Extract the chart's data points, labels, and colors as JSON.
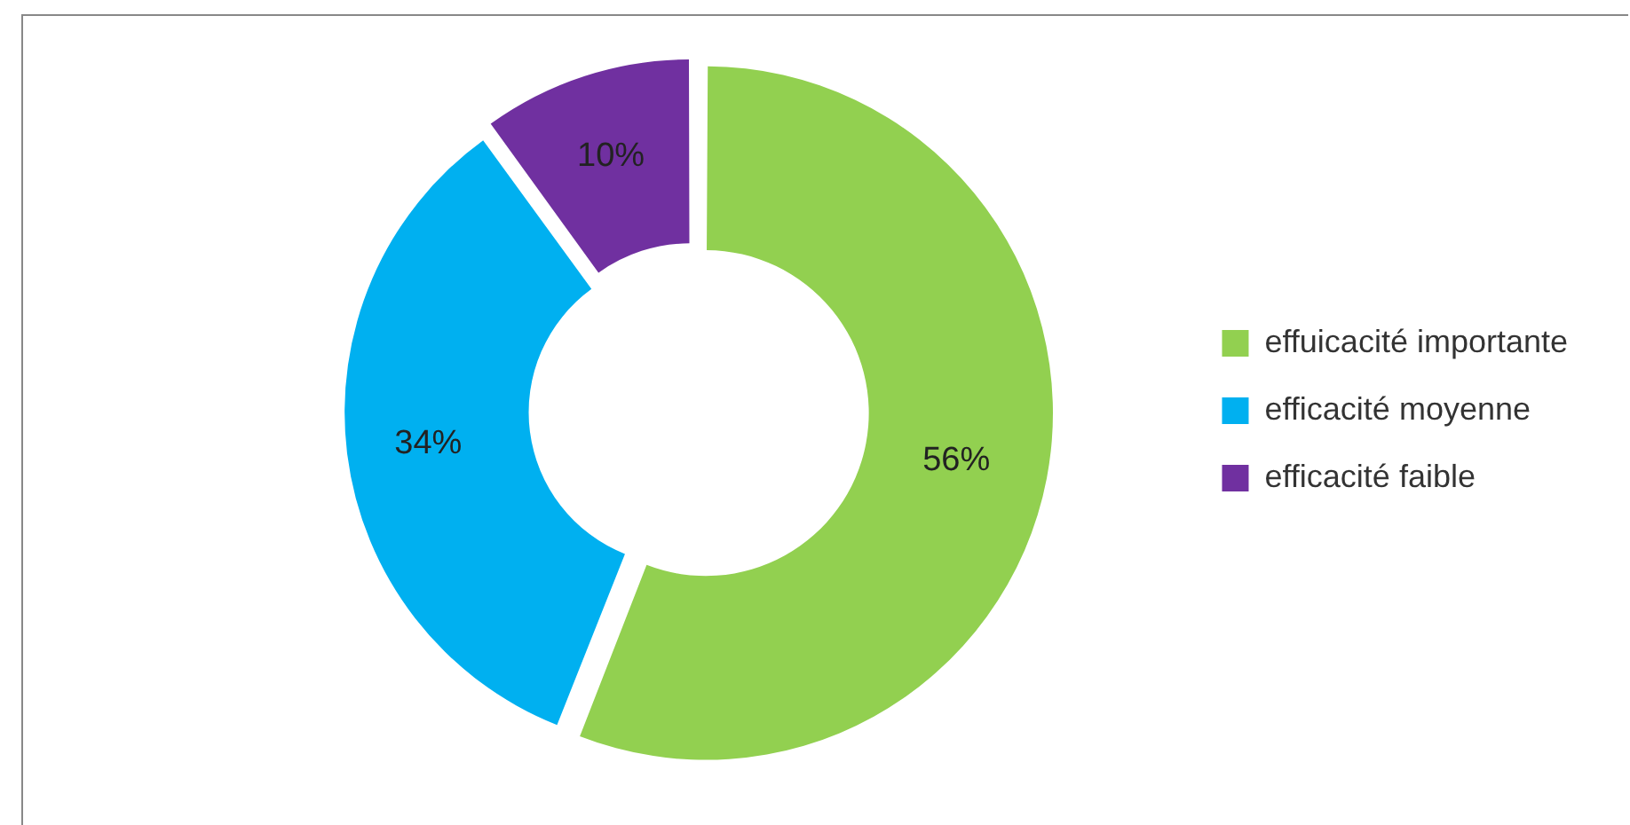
{
  "chart_data": {
    "type": "donut",
    "categories": [
      "effuicacité importante",
      "efficacité moyenne",
      "efficacité faible"
    ],
    "values": [
      56,
      34,
      10
    ],
    "colors": [
      "#92d050",
      "#00b0f0",
      "#7030a0"
    ],
    "value_labels": [
      "56%",
      "34%",
      "10%"
    ],
    "legend": "right"
  }
}
